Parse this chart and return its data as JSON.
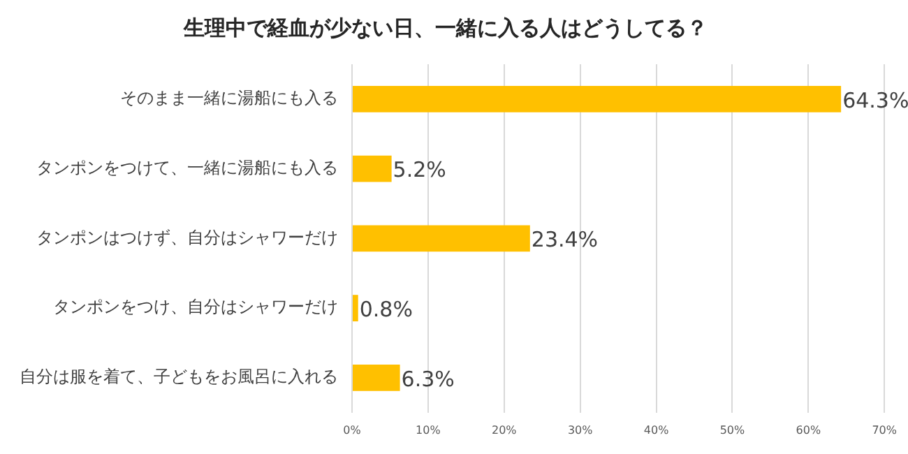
{
  "chart_data": {
    "type": "bar",
    "orientation": "horizontal",
    "title": "生理中で経血が少ない日、一緒に入る人はどうしてる？",
    "categories": [
      "そのまま一緒に湯船にも入る",
      "タンポンをつけて、一緒に湯船にも入る",
      "タンポンはつけず、自分はシャワーだけ",
      "タンポンをつけ、自分はシャワーだけ",
      "自分は服を着て、子どもをお風呂に入れる"
    ],
    "values": [
      64.3,
      5.2,
      23.4,
      0.8,
      6.3
    ],
    "value_labels": [
      "64.3%",
      "5.2%",
      "23.4%",
      "0.8%",
      "6.3%"
    ],
    "color": "#ffc000",
    "xlim": [
      0,
      70
    ],
    "xticks": [
      {
        "value": 0,
        "label": "0%"
      },
      {
        "value": 10,
        "label": "10%"
      },
      {
        "value": 20,
        "label": "20%"
      },
      {
        "value": 30,
        "label": "30%"
      },
      {
        "value": 40,
        "label": "40%"
      },
      {
        "value": 50,
        "label": "50%"
      },
      {
        "value": 60,
        "label": "60%"
      },
      {
        "value": 70,
        "label": "70%"
      }
    ],
    "grid": "x"
  }
}
